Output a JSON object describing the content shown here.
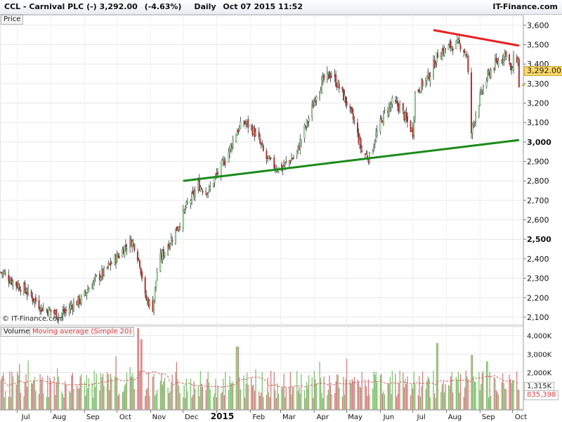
{
  "header": {
    "symbol": "CCL - Carnival PLC (-)",
    "price": "3,292.00",
    "change": "(-4.63%)",
    "period": "Daily",
    "datetime": "Oct 07 2015 11:52",
    "brand": "IT-Finance.com"
  },
  "price_panel_label": "Price",
  "volume_legend": {
    "volume": "Volume",
    "ma": "Moving average (Simple 20)"
  },
  "copyright": "© IT-Finance.com",
  "current_price_label": "3,292.00",
  "volume_markers": {
    "current_volume": "1,315K",
    "ma_value": "835,398"
  },
  "colors": {
    "up": "#7bbf6a",
    "down": "#d07a7a",
    "candle_up": "#2e8b2e",
    "candle_down": "#b03030",
    "support": "#1a8a1a",
    "resistance": "#e82020",
    "grid": "#e6e6e6",
    "ma": "#d06060",
    "price_tag": "#ffd966"
  },
  "chart_data": [
    {
      "type": "candlestick",
      "title": "CCL - Carnival PLC (-)",
      "ylabel": "Price",
      "ylim": [
        2060,
        3650
      ],
      "y_ticks": [
        2100,
        2200,
        2300,
        2400,
        2500,
        2600,
        2700,
        2800,
        2900,
        3000,
        3100,
        3200,
        3300,
        3400,
        3500,
        3600
      ],
      "y_tick_labels": [
        "2,100",
        "2,200",
        "2,300",
        "2,400",
        "2,500",
        "2,600",
        "2,700",
        "2,800",
        "2,900",
        "3,000",
        "3,100",
        "3,200",
        "3,300",
        "3,400",
        "3,500",
        "3,600"
      ],
      "x_labels": [
        "Jul",
        "Aug",
        "Sep",
        "Oct",
        "Nov",
        "Dec",
        "2015",
        "Feb",
        "Mar",
        "Apr",
        "May",
        "Jun",
        "Jul",
        "Aug",
        "Sep",
        "Oct"
      ],
      "x_label_dates": [
        "2014-07-01",
        "2014-08-01",
        "2014-09-01",
        "2014-10-01",
        "2014-11-01",
        "2014-12-01",
        "2015-01-01",
        "2015-02-01",
        "2015-03-01",
        "2015-04-01",
        "2015-05-01",
        "2015-06-01",
        "2015-07-01",
        "2015-08-01",
        "2015-09-01",
        "2015-10-01"
      ],
      "grid": true,
      "close_path": [
        [
          "2014-06-18",
          2330
        ],
        [
          "2014-06-25",
          2290
        ],
        [
          "2014-07-08",
          2240
        ],
        [
          "2014-07-15",
          2200
        ],
        [
          "2014-07-23",
          2150
        ],
        [
          "2014-08-01",
          2130
        ],
        [
          "2014-08-08",
          2110
        ],
        [
          "2014-08-15",
          2130
        ],
        [
          "2014-08-22",
          2170
        ],
        [
          "2014-08-29",
          2190
        ],
        [
          "2014-09-05",
          2250
        ],
        [
          "2014-09-12",
          2300
        ],
        [
          "2014-09-19",
          2330
        ],
        [
          "2014-09-26",
          2380
        ],
        [
          "2014-10-03",
          2420
        ],
        [
          "2014-10-08",
          2460
        ],
        [
          "2014-10-14",
          2490
        ],
        [
          "2014-10-17",
          2470
        ],
        [
          "2014-10-22",
          2380
        ],
        [
          "2014-10-27",
          2200
        ],
        [
          "2014-11-03",
          2150
        ],
        [
          "2014-11-08",
          2380
        ],
        [
          "2014-11-15",
          2450
        ],
        [
          "2014-11-22",
          2520
        ],
        [
          "2014-11-29",
          2600
        ],
        [
          "2014-12-05",
          2680
        ],
        [
          "2014-12-10",
          2720
        ],
        [
          "2014-12-15",
          2780
        ],
        [
          "2014-12-19",
          2760
        ],
        [
          "2014-12-25",
          2750
        ],
        [
          "2014-12-29",
          2800
        ],
        [
          "2015-01-05",
          2870
        ],
        [
          "2015-01-12",
          2950
        ],
        [
          "2015-01-19",
          3050
        ],
        [
          "2015-01-26",
          3100
        ],
        [
          "2015-02-01",
          3080
        ],
        [
          "2015-02-08",
          3020
        ],
        [
          "2015-02-15",
          2920
        ],
        [
          "2015-02-22",
          2880
        ],
        [
          "2015-03-01",
          2860
        ],
        [
          "2015-03-08",
          2900
        ],
        [
          "2015-03-15",
          2930
        ],
        [
          "2015-03-22",
          3050
        ],
        [
          "2015-03-29",
          3150
        ],
        [
          "2015-04-03",
          3250
        ],
        [
          "2015-04-10",
          3320
        ],
        [
          "2015-04-17",
          3350
        ],
        [
          "2015-04-24",
          3280
        ],
        [
          "2015-05-01",
          3200
        ],
        [
          "2015-05-08",
          3100
        ],
        [
          "2015-05-15",
          2950
        ],
        [
          "2015-05-22",
          2920
        ],
        [
          "2015-05-29",
          3050
        ],
        [
          "2015-06-05",
          3150
        ],
        [
          "2015-06-12",
          3200
        ],
        [
          "2015-06-19",
          3180
        ],
        [
          "2015-06-26",
          3100
        ],
        [
          "2015-07-01",
          3050
        ],
        [
          "2015-07-03",
          3250
        ],
        [
          "2015-07-10",
          3300
        ],
        [
          "2015-07-17",
          3350
        ],
        [
          "2015-07-24",
          3450
        ],
        [
          "2015-08-01",
          3480
        ],
        [
          "2015-08-08",
          3500
        ],
        [
          "2015-08-15",
          3500
        ],
        [
          "2015-08-20",
          3440
        ],
        [
          "2015-08-24",
          3050
        ],
        [
          "2015-08-28",
          3150
        ],
        [
          "2015-09-05",
          3300
        ],
        [
          "2015-09-12",
          3380
        ],
        [
          "2015-09-19",
          3420
        ],
        [
          "2015-09-26",
          3470
        ],
        [
          "2015-09-30",
          3350
        ],
        [
          "2015-10-03",
          3450
        ],
        [
          "2015-10-06",
          3420
        ],
        [
          "2015-10-07",
          3292
        ]
      ],
      "trendlines": [
        {
          "color": "support",
          "from": [
            "2014-12-01",
            2800
          ],
          "to": [
            "2015-10-07",
            3010
          ]
        },
        {
          "color": "resistance",
          "from": [
            "2015-07-20",
            3575
          ],
          "to": [
            "2015-10-07",
            3495
          ]
        }
      ],
      "current_price": 3292
    },
    {
      "type": "bar",
      "title": "Volume",
      "ylim": [
        0,
        4500000
      ],
      "y_ticks": [
        1000000,
        2000000,
        3000000,
        4000000
      ],
      "y_tick_labels": [
        "",
        "2,000K",
        "3,000K",
        "4,000K"
      ],
      "series": [
        {
          "name": "Volume",
          "kind": "bar"
        },
        {
          "name": "Moving average (Simple 20)",
          "kind": "line",
          "value": 835398
        }
      ],
      "current_volume": 1315000,
      "ma_current": 835398,
      "spikes": [
        [
          "2014-10-20",
          4400000
        ],
        [
          "2014-10-24",
          3800000
        ],
        [
          "2015-01-20",
          3400000
        ],
        [
          "2015-07-24",
          3600000
        ],
        [
          "2015-08-24",
          2950000
        ],
        [
          "2015-09-07",
          2600000
        ]
      ]
    }
  ]
}
